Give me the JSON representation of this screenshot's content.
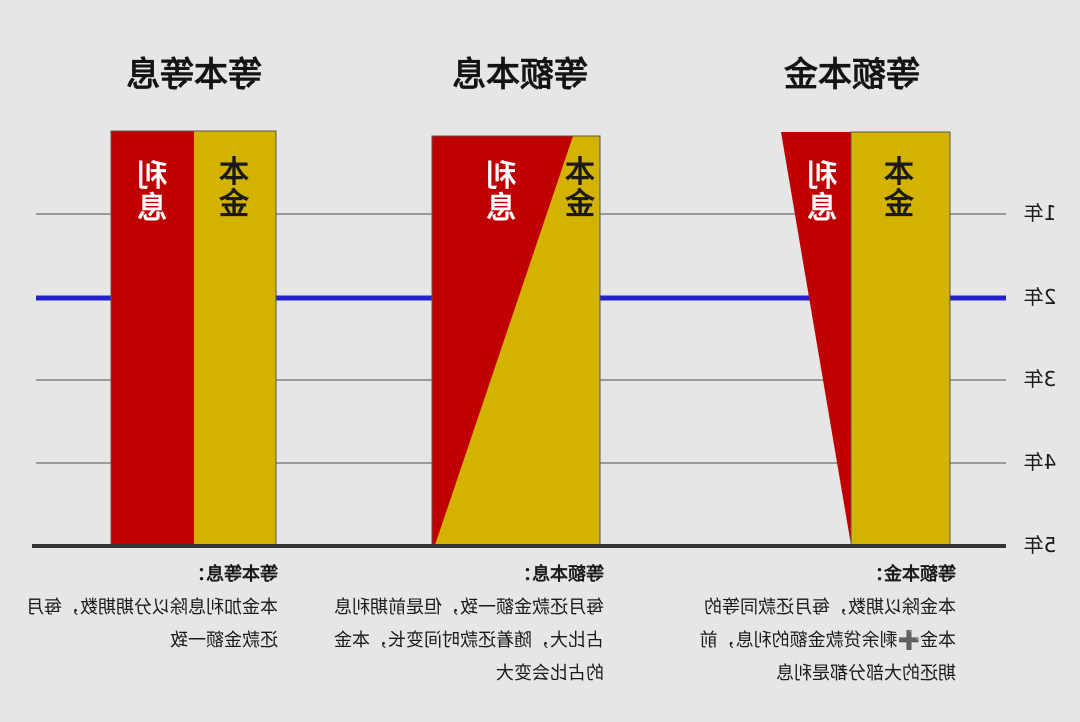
{
  "colors": {
    "background": "#e6e6e6",
    "interest": "#c00000",
    "principal": "#d4b200",
    "grid": "#9a9a9a",
    "highlight_line": "#2323cc",
    "baseline": "#333333"
  },
  "year_labels": [
    "1年",
    "2年",
    "3年",
    "4年",
    "5年"
  ],
  "panels": [
    {
      "title": "等本等息",
      "interest_label": "利息",
      "principal_label": "本金",
      "desc_title": "等本等息：",
      "desc_body": "本金加利息除以分期期数，每月还款金额一致"
    },
    {
      "title": "等额本息",
      "interest_label": "利息",
      "principal_label": "本金",
      "desc_title": "等额本息：",
      "desc_body": "每月还款金额一致，但是前期利息占比大，随着还款时间变长，本金的占比会变大"
    },
    {
      "title": "等额本金",
      "interest_label": "利息",
      "principal_label": "本金",
      "desc_title": "等额本金：",
      "desc_body": "本金除以期数，每月还款同等的本金➕剩余贷款金额的利息，前期还的大部分都是利息"
    }
  ]
}
